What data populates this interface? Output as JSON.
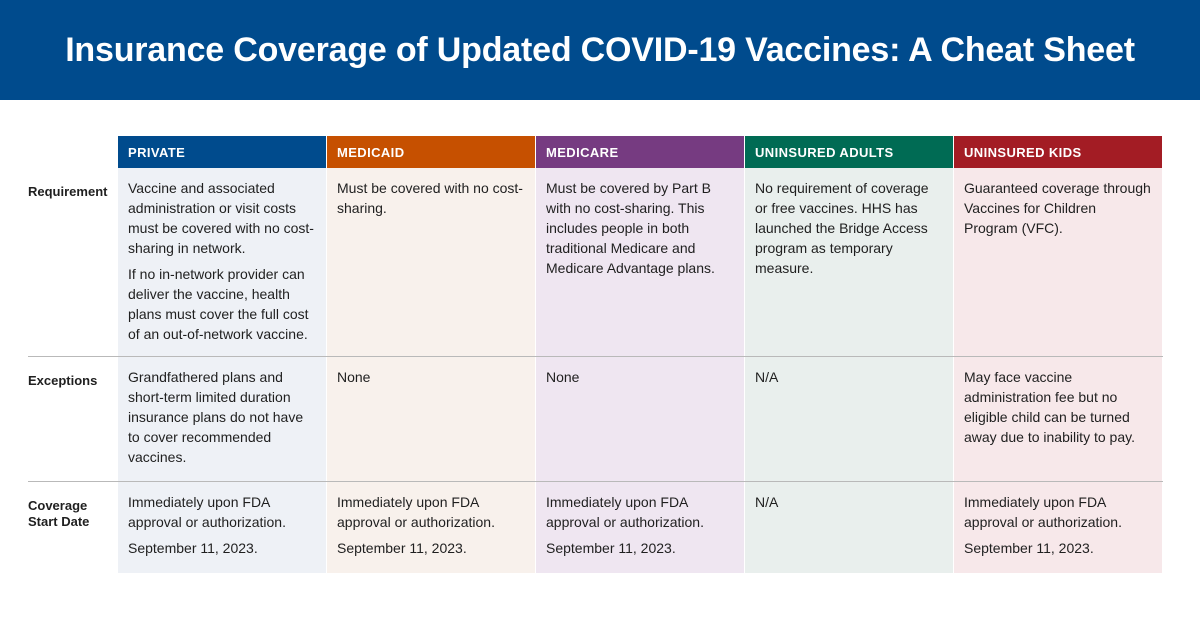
{
  "title": "Insurance Coverage of Updated COVID-19 Vaccines: A Cheat Sheet",
  "colors": {
    "banner": "#004b8d",
    "private": "#004b8d",
    "medicaid": "#c65000",
    "medicare": "#763b81",
    "uninsured_adults": "#006b54",
    "uninsured_kids": "#a31c24",
    "private_bg": "#eef1f6",
    "medicaid_bg": "#f8f1ec",
    "medicare_bg": "#efe6f1",
    "uninsured_adults_bg": "#e9efed",
    "uninsured_kids_bg": "#f7e8ea"
  },
  "columns": [
    "PRIVATE",
    "MEDICAID",
    "MEDICARE",
    "UNINSURED ADULTS",
    "UNINSURED KIDS"
  ],
  "rows": [
    {
      "label": "Requirement",
      "cells": [
        [
          "Vaccine and associated administration or visit costs must be covered with no cost-sharing in network.",
          "If no in-network provider can deliver the vaccine, health plans must cover the full cost of an out-of-network vaccine."
        ],
        [
          "Must be covered with no cost-sharing."
        ],
        [
          "Must be covered by Part B with no cost-sharing. This includes people in both traditional Medicare and Medicare Advantage plans."
        ],
        [
          "No requirement of coverage or free vaccines. HHS has launched the Bridge Access program as temporary measure."
        ],
        [
          "Guaranteed coverage through Vaccines for Children Program (VFC)."
        ]
      ]
    },
    {
      "label": "Exceptions",
      "cells": [
        [
          "Grandfathered plans and short-term limited duration insurance plans do not have to cover recommended vaccines."
        ],
        [
          "None"
        ],
        [
          "None"
        ],
        [
          "N/A"
        ],
        [
          "May face vaccine administration fee but no eligible child can be turned away due to inability to pay."
        ]
      ]
    },
    {
      "label": "Coverage Start Date",
      "cells": [
        [
          "Immediately upon FDA approval or authorization.",
          "September 11, 2023."
        ],
        [
          "Immediately upon FDA approval or authorization.",
          "September 11, 2023."
        ],
        [
          "Immediately upon FDA approval or authorization.",
          "September 11, 2023."
        ],
        [
          "N/A"
        ],
        [
          "Immediately upon FDA approval or authorization.",
          "September 11, 2023."
        ]
      ]
    }
  ]
}
